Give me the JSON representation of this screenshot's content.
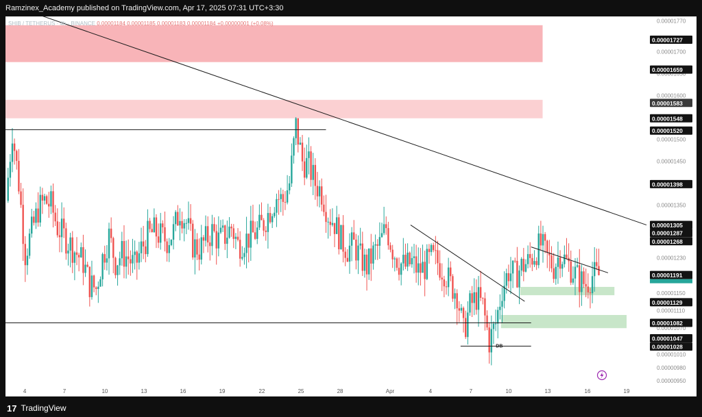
{
  "header": {
    "publisher_line": "Ramzinex_Academy published on TradingView.com, Apr 17, 2025 07:31 UTC+3:30"
  },
  "legend": {
    "symbol": "SHIB / TETHERUS · 4h · BINANCE",
    "open": "0.00001184",
    "high": "0.00001185",
    "low": "0.00001183",
    "close": "0.00001184",
    "change": "+0.00000001 (+0.08%)"
  },
  "footer": {
    "brand": "TradingView"
  },
  "chart_data": {
    "type": "candlestick",
    "y_range": [
      9.3e-06,
      1.78e-05
    ],
    "x_range": [
      "Mar 3 12:00",
      "Apr 19 22:00"
    ],
    "x_ticks": [
      "4",
      "7",
      "10",
      "13",
      "16",
      "19",
      "22",
      "25",
      "28",
      "Apr",
      "4",
      "7",
      "10",
      "13",
      "16",
      "19"
    ],
    "y_ticks": [
      "0.00001770",
      "0.00001700",
      "0.00001650",
      "0.00001600",
      "0.00001500",
      "0.00001450",
      "0.00001350",
      "0.00001230",
      "0.00001150",
      "0.00001110",
      "0.00001070",
      "0.00001010",
      "0.00000980",
      "0.00000950"
    ],
    "price_labels": [
      {
        "text": "0.00001727",
        "value": 1.727e-05,
        "style": "black"
      },
      {
        "text": "0.00001659",
        "value": 1.659e-05,
        "style": "black"
      },
      {
        "text": "0.00001583",
        "value": 1.583e-05,
        "style": "gray"
      },
      {
        "text": "0.00001548",
        "value": 1.548e-05,
        "style": "black"
      },
      {
        "text": "0.00001520",
        "value": 1.52e-05,
        "style": "black"
      },
      {
        "text": "0.00001398",
        "value": 1.398e-05,
        "style": "black"
      },
      {
        "text": "0.00001305",
        "value": 1.305e-05,
        "style": "black"
      },
      {
        "text": "0.00001287",
        "value": 1.287e-05,
        "style": "black"
      },
      {
        "text": "0.00001268",
        "value": 1.268e-05,
        "style": "black"
      },
      {
        "text": "0.00001191",
        "value": 1.191e-05,
        "style": "black"
      },
      {
        "text": "0.00001129",
        "value": 1.129e-05,
        "style": "black"
      },
      {
        "text": "0.00001082",
        "value": 1.082e-05,
        "style": "black"
      },
      {
        "text": "0.00001047",
        "value": 1.047e-05,
        "style": "black"
      },
      {
        "text": "0.00001028",
        "value": 1.028e-05,
        "style": "black"
      }
    ],
    "current_price": {
      "text": "0.00001191",
      "value": 1.191e-05,
      "color": "#26a69a"
    },
    "zones": [
      {
        "kind": "supply",
        "y_low": 1.676e-05,
        "y_high": 1.76e-05,
        "color": "#f8b4b8"
      },
      {
        "kind": "supply",
        "y_low": 1.548e-05,
        "y_high": 1.59e-05,
        "color": "#fbd0d2"
      },
      {
        "kind": "demand",
        "y_low": 1.145e-05,
        "y_high": 1.164e-05,
        "color": "#c8e6c9"
      },
      {
        "kind": "demand",
        "y_low": 1.07e-05,
        "y_high": 1.1e-05,
        "color": "#c8e6c9"
      }
    ],
    "lines": [
      {
        "kind": "descending-trendline",
        "from": [
          0.0,
          1.81e-05
        ],
        "to": [
          1.0,
          1.305e-05
        ]
      },
      {
        "kind": "horizontal-resistance",
        "from": [
          0.0,
          1.522e-05
        ],
        "to": [
          0.5,
          1.522e-05
        ]
      },
      {
        "kind": "horizontal-support",
        "from": [
          0.0,
          1.082e-05
        ],
        "to": [
          0.82,
          1.082e-05
        ]
      },
      {
        "kind": "double-bottom",
        "from": [
          0.71,
          1.029e-05
        ],
        "to": [
          0.82,
          1.029e-05
        ]
      },
      {
        "kind": "descending-trendline",
        "from": [
          0.632,
          1.305e-05
        ],
        "to": [
          0.81,
          1.131e-05
        ]
      },
      {
        "kind": "descending-trendline",
        "from": [
          0.82,
          1.255e-05
        ],
        "to": [
          0.94,
          1.196e-05
        ]
      }
    ],
    "annotations": [
      {
        "text": "DB",
        "x": 0.765,
        "y": 1.026e-05
      }
    ],
    "price_path": [
      1.36e-05,
      1.52e-05,
      1.4e-05,
      1.24e-05,
      1.29e-05,
      1.34e-05,
      1.36e-05,
      1.35e-05,
      1.3e-05,
      1.28e-05,
      1.26e-05,
      1.24e-05,
      1.22e-05,
      1.17e-05,
      1.16e-05,
      1.23e-05,
      1.28e-05,
      1.22e-05,
      1.24e-05,
      1.23e-05,
      1.21e-05,
      1.25e-05,
      1.28e-05,
      1.29e-05,
      1.28e-05,
      1.27e-05,
      1.29e-05,
      1.34e-05,
      1.31e-05,
      1.26e-05,
      1.25e-05,
      1.27e-05,
      1.29e-05,
      1.27e-05,
      1.28e-05,
      1.3e-05,
      1.26e-05,
      1.27e-05,
      1.28e-05,
      1.29e-05,
      1.31e-05,
      1.34e-05,
      1.37e-05,
      1.36e-05,
      1.4e-05,
      1.53e-05,
      1.45e-05,
      1.44e-05,
      1.4e-05,
      1.38e-05,
      1.33e-05,
      1.31e-05,
      1.27e-05,
      1.25e-05,
      1.26e-05,
      1.23e-05,
      1.21e-05,
      1.24e-05,
      1.26e-05,
      1.3e-05,
      1.25e-05,
      1.22e-05,
      1.21e-05,
      1.22e-05,
      1.2e-05,
      1.21e-05,
      1.23e-05,
      1.22e-05,
      1.2e-05,
      1.17e-05,
      1.15e-05,
      1.06e-05,
      1.12e-05,
      1.14e-05,
      1.12e-05,
      1.04e-05,
      1.08e-05,
      1.16e-05,
      1.2e-05,
      1.19e-05,
      1.21e-05,
      1.22e-05,
      1.24e-05,
      1.26e-05,
      1.23e-05,
      1.21e-05,
      1.24e-05,
      1.22e-05,
      1.2e-05,
      1.18e-05,
      1.17e-05,
      1.19e-05,
      1.19e-05
    ]
  }
}
